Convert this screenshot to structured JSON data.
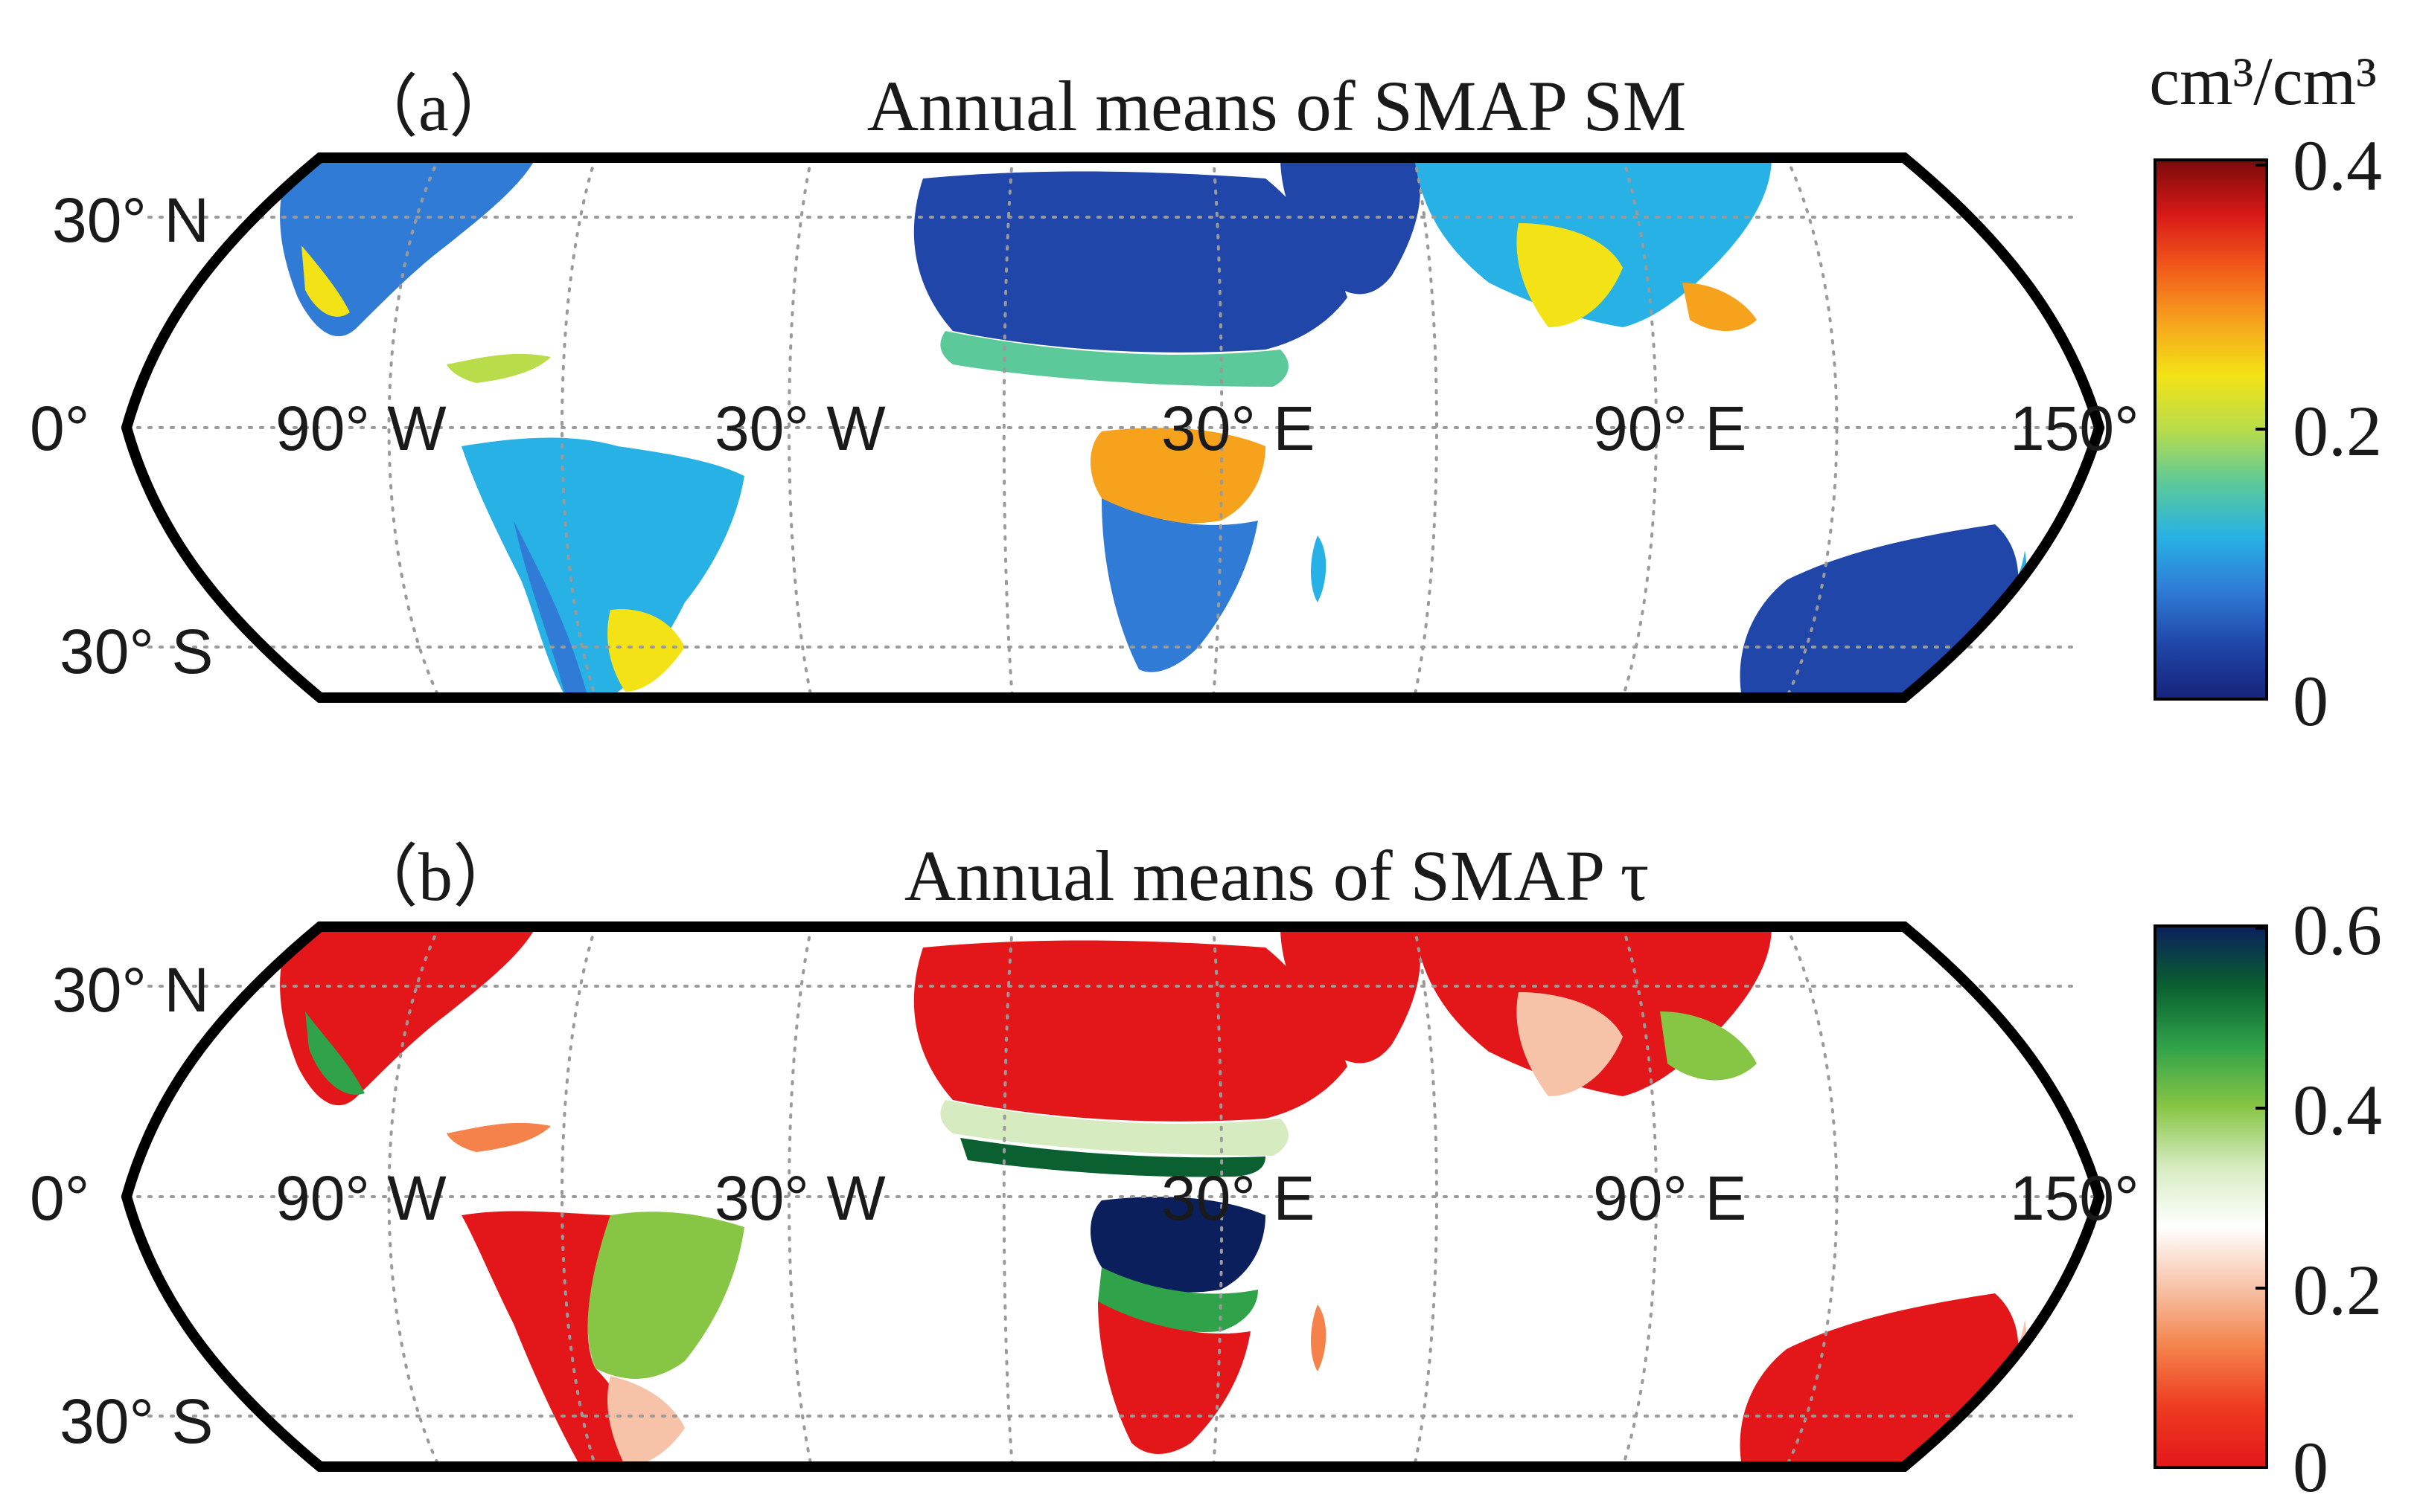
{
  "panels": [
    {
      "id": "a",
      "panel_label": "（a）",
      "title": "Annual means of SMAP SM",
      "colorbar": {
        "unit": "cm³/cm³",
        "ticks": [
          "0.4",
          "0.2",
          "0"
        ],
        "colors": [
          "#7a0a0a",
          "#d81818",
          "#f25a1a",
          "#f7a21d",
          "#f3e316",
          "#b9dc4a",
          "#5cc99a",
          "#27b1e4",
          "#2f7bd6",
          "#1f46a8",
          "#16237a"
        ]
      },
      "lat_labels": [
        "30° N",
        "0°",
        "30° S"
      ],
      "lon_labels": [
        "90° W",
        "30° W",
        "30° E",
        "90° E",
        "150°"
      ]
    },
    {
      "id": "b",
      "panel_label": "（b）",
      "title": "Annual means of SMAP τ",
      "colorbar": {
        "unit": "",
        "ticks": [
          "0.6",
          "0.4",
          "0.2",
          "0"
        ],
        "colors": [
          "#0b1f5c",
          "#0a6030",
          "#2fa24a",
          "#87c544",
          "#d6ebc0",
          "#ffffff",
          "#f7c3a8",
          "#f4824a",
          "#ee3b21",
          "#e3171a"
        ]
      },
      "lat_labels": [
        "30° N",
        "0°",
        "30° S"
      ],
      "lon_labels": [
        "90° W",
        "30° W",
        "30° E",
        "90° E",
        "150°"
      ]
    }
  ],
  "legend": {
    "dry": "#1f46a8",
    "moderate": "#27b1e4",
    "wet": "#f3e316",
    "very_wet": "#d81818",
    "tau_low": "#e3171a",
    "tau_mid": "#ffffff",
    "tau_high": "#0a6030",
    "tau_max": "#0b1f5c"
  }
}
